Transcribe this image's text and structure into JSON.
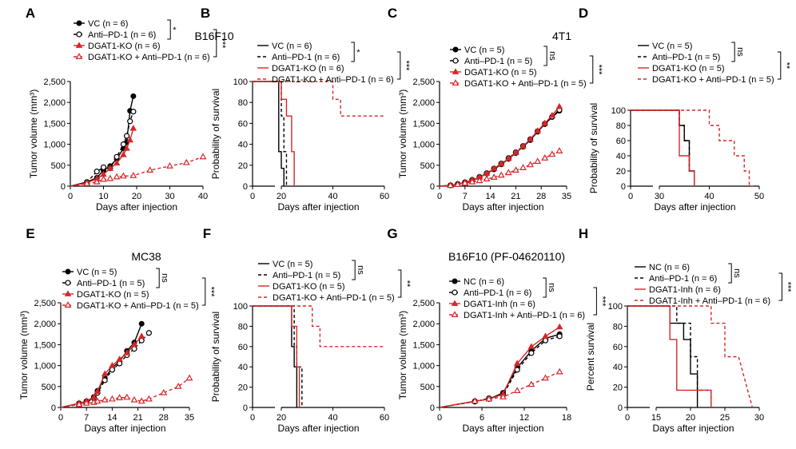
{
  "colors": {
    "black": "#000000",
    "red": "#d62728"
  },
  "chart_data": [
    {
      "panel": "A",
      "type": "line",
      "title": "",
      "xlabel": "Days after injection",
      "ylabel": "Tumor volume (mm³)",
      "xlim": [
        0,
        40
      ],
      "ylim": [
        0,
        2500
      ],
      "xticks": [
        "0",
        "10",
        "20",
        "30",
        "40"
      ],
      "yticks": [
        "0",
        "500",
        "1,000",
        "1,500",
        "2,000",
        "2,500"
      ],
      "legend": [
        "VC (n = 6)",
        "Anti–PD-1 (n = 6)",
        "DGAT1-KO (n = 6)",
        "DGAT1-KO + Anti–PD-1 (n = 6)"
      ],
      "sig": [
        "*",
        "***"
      ],
      "series": [
        {
          "x": [
            0,
            5,
            8,
            10,
            12,
            14,
            16,
            17,
            18,
            19
          ],
          "y": [
            0,
            100,
            200,
            380,
            480,
            650,
            900,
            1050,
            1800,
            2150
          ]
        },
        {
          "x": [
            0,
            5,
            8,
            10,
            12,
            14,
            16,
            17,
            18,
            19
          ],
          "y": [
            0,
            90,
            350,
            450,
            430,
            700,
            1000,
            1200,
            1550,
            1780
          ]
        },
        {
          "x": [
            0,
            5,
            8,
            10,
            12,
            14,
            16,
            17,
            18,
            19
          ],
          "y": [
            0,
            80,
            180,
            280,
            420,
            550,
            750,
            900,
            1100,
            1380
          ]
        },
        {
          "x": [
            0,
            5,
            8,
            10,
            12,
            14,
            16,
            19,
            24,
            30,
            35,
            40
          ],
          "y": [
            0,
            60,
            100,
            160,
            180,
            220,
            240,
            250,
            380,
            480,
            560,
            700
          ]
        }
      ]
    },
    {
      "panel": "B",
      "type": "line",
      "title": "B16F10",
      "xlabel": "Days after injection",
      "ylabel": "Probability of survival",
      "xlim": [
        0,
        60
      ],
      "ylim": [
        0,
        100
      ],
      "xticks": [
        "0",
        "20",
        "40",
        "60"
      ],
      "yticks": [
        "0",
        "20",
        "40",
        "60",
        "80",
        "100"
      ],
      "legend": [
        "VC (n = 6)",
        "Anti–PD-1 (n = 6)",
        "DGAT1-KO (n = 6)",
        "DGAT1-KO + Anti–PD-1 (n = 6)"
      ],
      "sig": [
        "*",
        "***"
      ],
      "series": [
        {
          "x": [
            0,
            19,
            19,
            20,
            20,
            21,
            21
          ],
          "y": [
            100,
            100,
            33,
            33,
            17,
            17,
            0
          ]
        },
        {
          "x": [
            0,
            20,
            20,
            21,
            21,
            22,
            22
          ],
          "y": [
            100,
            100,
            67,
            67,
            33,
            33,
            0
          ]
        },
        {
          "x": [
            0,
            20,
            20,
            22,
            22,
            24,
            24,
            25,
            25
          ],
          "y": [
            100,
            100,
            83,
            83,
            67,
            67,
            33,
            33,
            0
          ]
        },
        {
          "x": [
            0,
            40,
            40,
            43,
            43,
            60
          ],
          "y": [
            100,
            100,
            83,
            83,
            67,
            67
          ]
        }
      ]
    },
    {
      "panel": "C",
      "type": "line",
      "title": "4T1",
      "xlabel": "Days after injection",
      "ylabel": "Tumor volume (mm³)",
      "xlim": [
        0,
        35
      ],
      "ylim": [
        0,
        2500
      ],
      "xticks": [
        "0",
        "7",
        "14",
        "21",
        "28",
        "35"
      ],
      "yticks": [
        "0",
        "500",
        "1,000",
        "1,500",
        "2,000",
        "2,500"
      ],
      "legend": [
        "VC (n = 5)",
        "Anti–PD-1 (n = 5)",
        "DGAT1-KO (n = 5)",
        "DGAT1-KO + Anti–PD-1 (n = 5)"
      ],
      "sig": [
        "ns",
        "***"
      ],
      "series": [
        {
          "x": [
            0,
            3,
            5,
            7,
            9,
            11,
            13,
            15,
            17,
            19,
            21,
            23,
            25,
            27,
            29,
            31,
            33
          ],
          "y": [
            0,
            20,
            50,
            90,
            140,
            210,
            300,
            400,
            520,
            650,
            790,
            940,
            1100,
            1300,
            1480,
            1650,
            1800
          ]
        },
        {
          "x": [
            0,
            3,
            5,
            7,
            9,
            11,
            13,
            15,
            17,
            19,
            21,
            23,
            25,
            27,
            29,
            31,
            33
          ],
          "y": [
            0,
            20,
            50,
            90,
            150,
            220,
            310,
            420,
            540,
            670,
            810,
            960,
            1120,
            1310,
            1490,
            1660,
            1820
          ]
        },
        {
          "x": [
            0,
            3,
            5,
            7,
            9,
            11,
            13,
            15,
            17,
            19,
            21,
            23,
            25,
            27,
            29,
            31,
            33
          ],
          "y": [
            0,
            20,
            50,
            90,
            150,
            210,
            300,
            420,
            530,
            660,
            800,
            950,
            1120,
            1320,
            1500,
            1690,
            1900
          ]
        },
        {
          "x": [
            0,
            3,
            5,
            7,
            9,
            11,
            13,
            15,
            17,
            19,
            21,
            23,
            25,
            27,
            29,
            31,
            33
          ],
          "y": [
            0,
            15,
            40,
            70,
            100,
            130,
            170,
            210,
            260,
            320,
            380,
            440,
            510,
            590,
            670,
            760,
            840
          ]
        }
      ]
    },
    {
      "panel": "D",
      "type": "line",
      "title": "",
      "xlabel": "Days after injection",
      "ylabel": "Probability of survival",
      "xlim": [
        0,
        50
      ],
      "ylim": [
        0,
        100
      ],
      "xticks": [
        "0",
        "30",
        "40",
        "50"
      ],
      "yticks": [
        "0",
        "20",
        "40",
        "60",
        "80",
        "100"
      ],
      "legend": [
        "VC (n = 5)",
        "Anti–PD-1 (n = 5)",
        "DGAT1-KO (n = 5)",
        "DGAT1-KO + Anti–PD-1 (n = 5)"
      ],
      "sig": [
        "ns",
        "**"
      ],
      "series": [
        {
          "x": [
            0,
            34,
            34,
            35,
            35,
            36,
            36,
            37,
            37
          ],
          "y": [
            100,
            100,
            80,
            80,
            60,
            60,
            20,
            20,
            0
          ]
        },
        {
          "x": [
            0,
            34,
            34,
            35,
            35,
            36,
            36,
            37,
            37
          ],
          "y": [
            100,
            100,
            80,
            80,
            60,
            60,
            20,
            20,
            0
          ]
        },
        {
          "x": [
            0,
            34,
            34,
            36,
            36,
            37,
            37
          ],
          "y": [
            100,
            100,
            40,
            40,
            20,
            20,
            0
          ]
        },
        {
          "x": [
            0,
            40,
            40,
            42,
            42,
            45,
            45,
            47,
            47,
            48,
            48,
            49,
            49
          ],
          "y": [
            100,
            100,
            80,
            80,
            60,
            60,
            40,
            40,
            20,
            20,
            0,
            0,
            0
          ]
        }
      ]
    },
    {
      "panel": "E",
      "type": "line",
      "title": "MC38",
      "xlabel": "Days after injection",
      "ylabel": "Tumor volume (mm³)",
      "xlim": [
        0,
        35
      ],
      "ylim": [
        0,
        2500
      ],
      "xticks": [
        "0",
        "7",
        "14",
        "21",
        "28",
        "35"
      ],
      "yticks": [
        "0",
        "500",
        "1,000",
        "1,500",
        "2,000",
        "2,500"
      ],
      "legend": [
        "VC (n = 5)",
        "Anti–PD-1 (n = 5)",
        "DGAT1-KO (n = 5)",
        "DGAT1-KO + Anti–PD-1 (n = 5)"
      ],
      "sig": [
        "ns",
        "***"
      ],
      "series": [
        {
          "x": [
            0,
            5,
            7,
            9,
            10,
            12,
            14,
            16,
            18,
            20,
            22
          ],
          "y": [
            0,
            100,
            150,
            250,
            400,
            700,
            950,
            1100,
            1350,
            1550,
            2000
          ]
        },
        {
          "x": [
            0,
            5,
            7,
            9,
            10,
            12,
            14,
            16,
            18,
            20,
            22,
            24
          ],
          "y": [
            0,
            90,
            130,
            220,
            350,
            650,
            900,
            1050,
            1250,
            1400,
            1600,
            1780
          ]
        },
        {
          "x": [
            0,
            5,
            7,
            9,
            10,
            12,
            14,
            16,
            18,
            20,
            22
          ],
          "y": [
            0,
            100,
            150,
            240,
            380,
            800,
            1000,
            1150,
            1300,
            1500,
            1700
          ]
        },
        {
          "x": [
            0,
            5,
            7,
            9,
            10,
            12,
            14,
            16,
            18,
            20,
            22,
            24,
            28,
            32,
            35
          ],
          "y": [
            0,
            70,
            100,
            120,
            150,
            180,
            200,
            230,
            240,
            180,
            150,
            200,
            350,
            500,
            700
          ]
        }
      ]
    },
    {
      "panel": "F",
      "type": "line",
      "title": "",
      "xlabel": "Days after injection",
      "ylabel": "Probability of survival",
      "xlim": [
        0,
        60
      ],
      "ylim": [
        0,
        100
      ],
      "xticks": [
        "0",
        "20",
        "40",
        "60"
      ],
      "yticks": [
        "0",
        "20",
        "40",
        "60",
        "80",
        "100"
      ],
      "legend": [
        "VC (n = 5)",
        "Anti–PD-1 (n = 5)",
        "DGAT1-KO (n = 5)",
        "DGAT1-KO + Anti–PD-1 (n = 5)"
      ],
      "sig": [
        "ns",
        "**"
      ],
      "series": [
        {
          "x": [
            0,
            24,
            24,
            25,
            25,
            26,
            26
          ],
          "y": [
            100,
            100,
            60,
            60,
            40,
            40,
            0
          ]
        },
        {
          "x": [
            0,
            25,
            25,
            26,
            26,
            28,
            28
          ],
          "y": [
            100,
            100,
            60,
            60,
            40,
            40,
            0
          ]
        },
        {
          "x": [
            0,
            24,
            24,
            26,
            26,
            27,
            27
          ],
          "y": [
            100,
            100,
            80,
            80,
            40,
            40,
            0
          ]
        },
        {
          "x": [
            0,
            32,
            32,
            35,
            35,
            40,
            40,
            60
          ],
          "y": [
            100,
            100,
            80,
            80,
            60,
            60,
            60,
            60
          ]
        }
      ]
    },
    {
      "panel": "G",
      "type": "line",
      "title": "B16F10 (PF-04620110)",
      "xlabel": "Days after injection",
      "ylabel": "Tumor volume (mm³)",
      "xlim": [
        0,
        18
      ],
      "ylim": [
        0,
        2500
      ],
      "xticks": [
        "0",
        "6",
        "12",
        "18"
      ],
      "yticks": [
        "0",
        "500",
        "1,000",
        "1,500",
        "2,000",
        "2,500"
      ],
      "legend": [
        "NC (n = 6)",
        "Anti–PD-1 (n = 6)",
        "DGAT1-Inh (n = 6)",
        "DGAT1-Inh + Anti–PD-1 (n = 6)"
      ],
      "sig": [
        "ns",
        "***"
      ],
      "series": [
        {
          "x": [
            0,
            5,
            7,
            9,
            11,
            13,
            15,
            17
          ],
          "y": [
            0,
            150,
            200,
            350,
            950,
            1350,
            1650,
            1750
          ]
        },
        {
          "x": [
            0,
            5,
            7,
            9,
            11,
            13,
            15,
            17
          ],
          "y": [
            0,
            140,
            220,
            300,
            900,
            1300,
            1600,
            1700
          ]
        },
        {
          "x": [
            0,
            5,
            7,
            9,
            11,
            13,
            15,
            17
          ],
          "y": [
            0,
            150,
            200,
            320,
            1050,
            1450,
            1700,
            1920
          ]
        },
        {
          "x": [
            0,
            5,
            7,
            9,
            11,
            13,
            15,
            17
          ],
          "y": [
            0,
            150,
            200,
            250,
            400,
            550,
            700,
            850
          ]
        }
      ]
    },
    {
      "panel": "H",
      "type": "line",
      "title": "",
      "xlabel": "Days after injection",
      "ylabel": "Percent survival",
      "xlim": [
        0,
        30
      ],
      "ylim": [
        0,
        100
      ],
      "xticks": [
        "0",
        "15",
        "20",
        "25",
        "30"
      ],
      "yticks": [
        "0",
        "20",
        "40",
        "60",
        "80",
        "100"
      ],
      "legend": [
        "NC (n = 6)",
        "Anti–PD-1 (n = 6)",
        "DGAT1-Inh (n = 6)",
        "DGAT1-Inh + Anti–PD-1 (n = 6)"
      ],
      "sig": [
        "ns",
        "***"
      ],
      "series": [
        {
          "x": [
            0,
            17,
            17,
            19,
            19,
            20,
            20,
            21,
            21
          ],
          "y": [
            100,
            100,
            83,
            83,
            67,
            67,
            33,
            33,
            0
          ]
        },
        {
          "x": [
            0,
            18,
            18,
            20,
            20,
            21,
            21,
            23,
            23
          ],
          "y": [
            100,
            100,
            83,
            83,
            50,
            50,
            17,
            17,
            0
          ]
        },
        {
          "x": [
            0,
            17,
            17,
            18,
            18,
            23,
            23
          ],
          "y": [
            100,
            100,
            67,
            67,
            17,
            17,
            0
          ]
        },
        {
          "x": [
            0,
            23,
            23,
            25,
            25,
            27,
            27,
            28,
            28,
            29,
            29
          ],
          "y": [
            100,
            100,
            83,
            83,
            50,
            50,
            50,
            25,
            25,
            0,
            0
          ]
        }
      ]
    }
  ]
}
